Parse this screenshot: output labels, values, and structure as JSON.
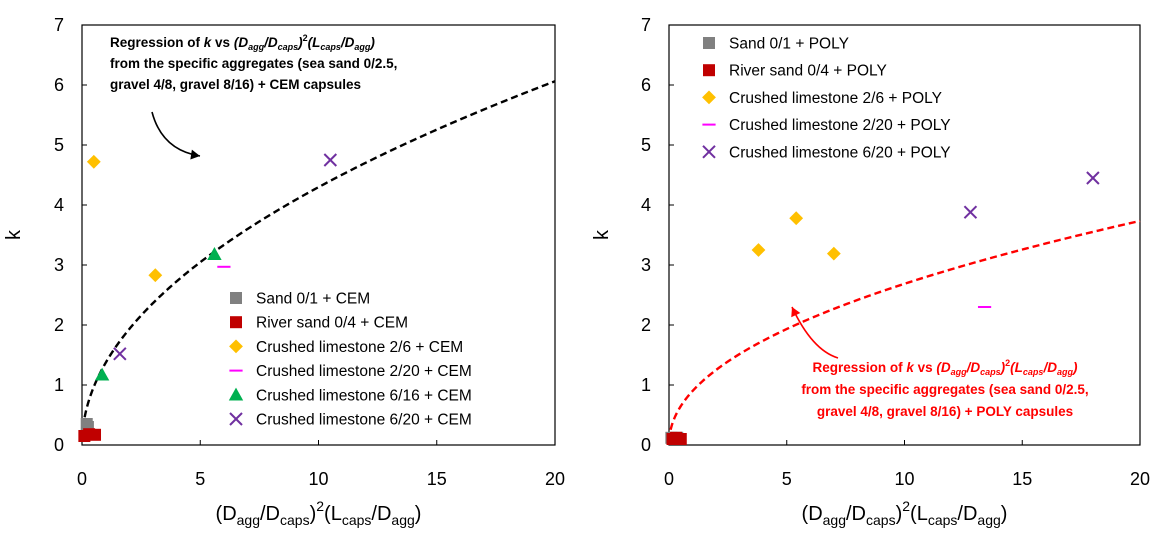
{
  "chart_data": [
    {
      "type": "scatter",
      "title": "",
      "xlabel": {
        "base": "(D",
        "s1": "agg",
        "m1": "/D",
        "s2": "caps",
        "m2": ")",
        "sup": "2",
        "m3": "(L",
        "s3": "caps",
        "m4": "/D",
        "s4": "agg",
        "m5": ")"
      },
      "ylabel": "k",
      "xlim": [
        0,
        20
      ],
      "ylim": [
        0,
        7
      ],
      "xticks": [
        0,
        5,
        10,
        15,
        20
      ],
      "yticks": [
        0,
        1,
        2,
        3,
        4,
        5,
        6,
        7
      ],
      "grid": false,
      "legend_position": "bottom-right",
      "series": [
        {
          "name": "Sand 0/1 + CEM",
          "marker": "square",
          "color": "#808080",
          "points": [
            [
              0.2,
              0.35
            ],
            [
              0.25,
              0.3
            ]
          ]
        },
        {
          "name": "River sand 0/4 + CEM",
          "marker": "square",
          "color": "#c00000",
          "points": [
            [
              0.1,
              0.15
            ],
            [
              0.3,
              0.18
            ],
            [
              0.55,
              0.17
            ]
          ]
        },
        {
          "name": "Crushed limestone 2/6 + CEM",
          "marker": "diamond",
          "color": "#ffc000",
          "points": [
            [
              0.5,
              4.72
            ],
            [
              3.1,
              2.83
            ]
          ]
        },
        {
          "name": "Crushed limestone 2/20 + CEM",
          "marker": "dash",
          "color": "#ff00ff",
          "points": [
            [
              6.0,
              2.97
            ]
          ]
        },
        {
          "name": "Crushed limestone 6/16 + CEM",
          "marker": "triangle",
          "color": "#00b050",
          "points": [
            [
              0.85,
              1.17
            ],
            [
              5.6,
              3.18
            ]
          ]
        },
        {
          "name": "Crushed limestone 6/20 + CEM",
          "marker": "x",
          "color": "#7030a0",
          "points": [
            [
              1.6,
              1.52
            ],
            [
              10.5,
              4.75
            ]
          ]
        }
      ],
      "regression": {
        "color": "#000000",
        "coef": 1.37,
        "exponent": 0.4965
      },
      "annotation": {
        "lines": [
          {
            "a": "Regression of ",
            "b": "k",
            "c": " vs ",
            "d": "(D",
            "e": "agg",
            "f": "/D",
            "g": "caps",
            "h": ")",
            "i": "2",
            "j": "(L",
            "k": "caps",
            "l": "/D",
            "m": "agg",
            "n": ")"
          },
          "from the specific aggregates (sea sand 0/2.5,",
          "gravel 4/8, gravel 8/16) + CEM capsules"
        ],
        "color": "#000000"
      }
    },
    {
      "type": "scatter",
      "title": "",
      "xlabel": {
        "base": "(D",
        "s1": "agg",
        "m1": "/D",
        "s2": "caps",
        "m2": ")",
        "sup": "2",
        "m3": "(L",
        "s3": "caps",
        "m4": "/D",
        "s4": "agg",
        "m5": ")"
      },
      "ylabel": "k",
      "xlim": [
        0,
        20
      ],
      "ylim": [
        0,
        7
      ],
      "xticks": [
        0,
        5,
        10,
        15,
        20
      ],
      "yticks": [
        0,
        1,
        2,
        3,
        4,
        5,
        6,
        7
      ],
      "grid": false,
      "legend_position": "top-left",
      "series": [
        {
          "name": "Sand 0/1 + POLY",
          "marker": "square",
          "color": "#808080",
          "points": [
            [
              0.1,
              0.12
            ],
            [
              0.35,
              0.12
            ]
          ]
        },
        {
          "name": "River sand 0/4 + POLY",
          "marker": "square",
          "color": "#c00000",
          "points": [
            [
              0.15,
              0.1
            ],
            [
              0.3,
              0.12
            ],
            [
              0.5,
              0.1
            ]
          ]
        },
        {
          "name": "Crushed limestone 2/6 + POLY",
          "marker": "diamond",
          "color": "#ffc000",
          "points": [
            [
              3.8,
              3.25
            ],
            [
              5.4,
              3.78
            ],
            [
              7.0,
              3.19
            ]
          ]
        },
        {
          "name": "Crushed limestone 2/20 + POLY",
          "marker": "dash",
          "color": "#ff00ff",
          "points": [
            [
              13.4,
              2.3
            ]
          ]
        },
        {
          "name": "Crushed limestone 6/20 + POLY",
          "marker": "x",
          "color": "#7030a0",
          "points": [
            [
              12.8,
              3.88
            ],
            [
              18.0,
              4.45
            ]
          ]
        }
      ],
      "regression": {
        "color": "#ff0000",
        "coef": 0.9,
        "exponent": 0.475
      },
      "annotation": {
        "lines": [
          {
            "a": "Regression of ",
            "b": "k",
            "c": " vs ",
            "d": "(D",
            "e": "agg",
            "f": "/D",
            "g": "caps",
            "h": ")",
            "i": "2",
            "j": "(L",
            "k": "caps",
            "l": "/D",
            "m": "agg",
            "n": ")"
          },
          "from the specific aggregates (sea sand 0/2.5,",
          "gravel 4/8, gravel 8/16) + POLY capsules"
        ],
        "color": "#ff0000"
      }
    }
  ]
}
